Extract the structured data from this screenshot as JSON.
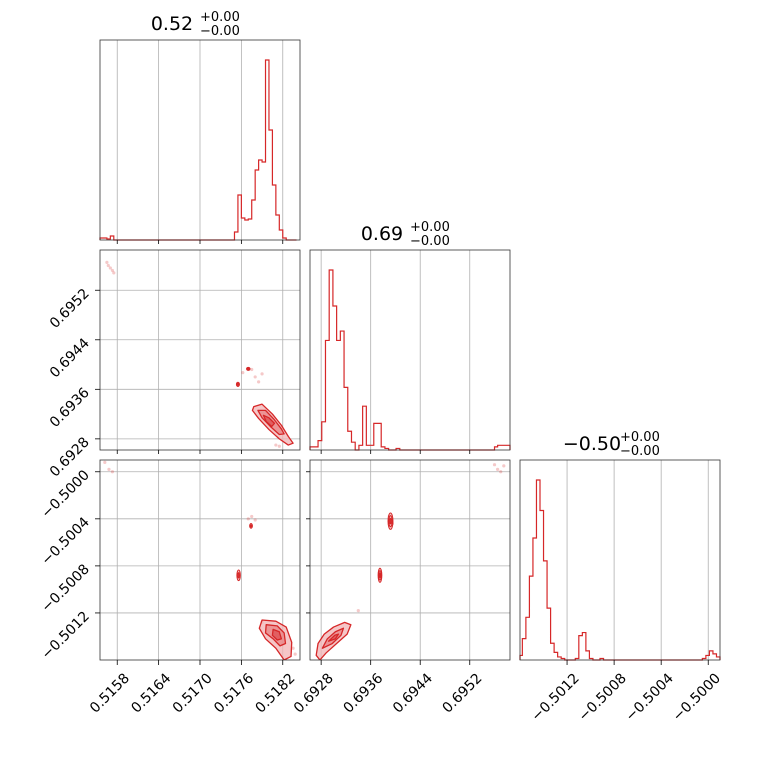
{
  "chart_data": {
    "type": "corner",
    "colors": {
      "main": "#d62728",
      "fill": "#f2b3b4",
      "grid": "#b0b0b0"
    },
    "parameters": [
      {
        "title": "0.52",
        "upper": "+0.00",
        "lower": "−0.00",
        "range": [
          0.51555,
          0.51845
        ],
        "ticks": [
          0.5158,
          0.5164,
          0.517,
          0.5176,
          0.5182
        ],
        "tick_labels": [
          "0.5158",
          "0.5164",
          "0.5170",
          "0.5176",
          "0.5182"
        ],
        "hist_bins": [
          0.51555,
          0.5156,
          0.51565,
          0.5157,
          0.51575,
          0.5175,
          0.51755,
          0.5176,
          0.51765,
          0.5177,
          0.51775,
          0.5178,
          0.51785,
          0.5179,
          0.51795,
          0.518,
          0.51805,
          0.5181,
          0.51815,
          0.5182,
          0.51825,
          0.5183,
          0.51835,
          0.5184
        ],
        "hist_counts": [
          2,
          2,
          1,
          4,
          0,
          8,
          45,
          22,
          20,
          21,
          40,
          70,
          80,
          78,
          180,
          110,
          55,
          25,
          10,
          2,
          0,
          0,
          0
        ]
      },
      {
        "title": "0.69",
        "upper": "+0.00",
        "lower": "−0.00",
        "range": [
          0.69262,
          0.69585
        ],
        "ticks": [
          0.6928,
          0.6936,
          0.6944,
          0.6952
        ],
        "tick_labels": [
          "0.6928",
          "0.6936",
          "0.6944",
          "0.6952"
        ],
        "hist_bins": [
          0.69262,
          0.69275,
          0.69281,
          0.69287,
          0.69293,
          0.69299,
          0.69305,
          0.69311,
          0.69317,
          0.69323,
          0.69329,
          0.69335,
          0.69341,
          0.69347,
          0.69353,
          0.69359,
          0.69365,
          0.69371,
          0.69377,
          0.69383,
          0.69389,
          0.69395,
          0.69401,
          0.69407,
          0.6956,
          0.69565,
          0.6957,
          0.69575,
          0.69585
        ],
        "hist_counts": [
          2,
          6,
          18,
          70,
          115,
          92,
          70,
          76,
          40,
          12,
          5,
          0,
          3,
          28,
          3,
          3,
          17,
          17,
          2,
          1,
          0,
          0,
          1,
          0,
          2,
          3,
          3,
          3
        ]
      },
      {
        "title": "−0.50",
        "upper": "+0.00",
        "lower": "−0.00",
        "range": [
          -0.5016,
          -0.4999
        ],
        "ticks": [
          -0.5012,
          -0.5008,
          -0.5004,
          -0.5
        ],
        "tick_labels": [
          "−0.5012",
          "−0.5008",
          "−0.5004",
          "−0.5000"
        ],
        "hist_bins": [
          -0.5016,
          -0.50158,
          -0.50155,
          -0.50152,
          -0.50149,
          -0.50146,
          -0.50143,
          -0.5014,
          -0.50137,
          -0.50134,
          -0.50131,
          -0.50128,
          -0.50125,
          -0.50122,
          -0.50119,
          -0.50116,
          -0.50113,
          -0.5011,
          -0.50107,
          -0.50104,
          -0.50101,
          -0.50098,
          -0.50095,
          -0.50092,
          -0.50089,
          -0.50005,
          -0.50002,
          -0.49999,
          -0.49996,
          -0.49993,
          -0.4999
        ],
        "hist_counts": [
          3,
          14,
          28,
          55,
          80,
          118,
          98,
          65,
          34,
          11,
          5,
          2,
          1,
          0,
          0,
          0,
          1,
          16,
          18,
          6,
          1,
          0,
          0,
          1,
          0,
          1,
          3,
          6,
          4,
          2
        ]
      }
    ],
    "pairs": [
      {
        "xpar": 0,
        "ypar": 1,
        "scatter": [
          [
            0.51565,
            0.69565
          ],
          [
            0.51567,
            0.6956
          ],
          [
            0.5157,
            0.69556
          ],
          [
            0.51573,
            0.69552
          ],
          [
            0.51575,
            0.69548
          ],
          [
            0.51762,
            0.69387
          ],
          [
            0.51775,
            0.69392
          ],
          [
            0.5178,
            0.6938
          ],
          [
            0.51785,
            0.69372
          ],
          [
            0.5179,
            0.69385
          ],
          [
            0.5181,
            0.6927
          ],
          [
            0.51815,
            0.69268
          ]
        ],
        "blobs": [
          {
            "cx": 0.51755,
            "cy": 0.69368,
            "rx": 2.2e-05,
            "ry": 3.5e-05,
            "density": 2
          },
          {
            "cx": 0.5177,
            "cy": 0.69393,
            "rx": 2.5e-05,
            "ry": 2.5e-05,
            "density": 3
          }
        ],
        "contours": [
          [
            [
              0.51778,
              0.69332
            ],
            [
              0.5179,
              0.69336
            ],
            [
              0.51805,
              0.6932
            ],
            [
              0.51818,
              0.69302
            ],
            [
              0.51828,
              0.69284
            ],
            [
              0.51835,
              0.69273
            ],
            [
              0.51828,
              0.6927
            ],
            [
              0.51815,
              0.6928
            ],
            [
              0.518,
              0.69295
            ],
            [
              0.51785,
              0.69313
            ],
            [
              0.51776,
              0.69326
            ]
          ],
          [
            [
              0.51784,
              0.69326
            ],
            [
              0.51795,
              0.69326
            ],
            [
              0.51807,
              0.69312
            ],
            [
              0.51818,
              0.69296
            ],
            [
              0.51822,
              0.69288
            ],
            [
              0.51815,
              0.69287
            ],
            [
              0.51802,
              0.693
            ],
            [
              0.5179,
              0.69314
            ]
          ],
          [
            [
              0.51792,
              0.69318
            ],
            [
              0.518,
              0.69314
            ],
            [
              0.51808,
              0.69305
            ],
            [
              0.51804,
              0.693
            ],
            [
              0.51796,
              0.69308
            ]
          ]
        ]
      },
      {
        "xpar": 0,
        "ypar": 2,
        "scatter": [
          [
            0.51562,
            -0.49992
          ],
          [
            0.51568,
            -0.49998
          ],
          [
            0.51573,
            -0.5
          ],
          [
            0.5177,
            -0.5004
          ],
          [
            0.51775,
            -0.50038
          ],
          [
            0.5178,
            -0.50041
          ],
          [
            0.5179,
            -0.50128
          ],
          [
            0.51835,
            -0.5015
          ],
          [
            0.51838,
            -0.50155
          ]
        ],
        "blobs": [
          {
            "cx": 0.51756,
            "cy": -0.50088,
            "rx": 2.5e-05,
            "ry": 4.5e-05,
            "density": 2
          },
          {
            "cx": 0.51774,
            "cy": -0.50046,
            "rx": 2e-05,
            "ry": 2e-05,
            "density": 2
          }
        ],
        "contours": [
          [
            [
              0.5179,
              -0.50126
            ],
            [
              0.5181,
              -0.50127
            ],
            [
              0.51825,
              -0.50132
            ],
            [
              0.51833,
              -0.50145
            ],
            [
              0.51832,
              -0.50157
            ],
            [
              0.51822,
              -0.5016
            ],
            [
              0.5181,
              -0.5015
            ],
            [
              0.51795,
              -0.50142
            ],
            [
              0.51786,
              -0.50133
            ]
          ],
          [
            [
              0.51796,
              -0.5013
            ],
            [
              0.51812,
              -0.50131
            ],
            [
              0.51822,
              -0.50137
            ],
            [
              0.51824,
              -0.50146
            ],
            [
              0.51816,
              -0.50148
            ],
            [
              0.51806,
              -0.50142
            ],
            [
              0.51795,
              -0.50137
            ]
          ],
          [
            [
              0.51806,
              -0.50134
            ],
            [
              0.51815,
              -0.50136
            ],
            [
              0.51818,
              -0.50142
            ],
            [
              0.51812,
              -0.50143
            ],
            [
              0.51805,
              -0.50139
            ]
          ]
        ]
      },
      {
        "xpar": 1,
        "ypar": 2,
        "scatter": [
          [
            0.6956,
            -0.49994
          ],
          [
            0.69565,
            -0.49998
          ],
          [
            0.6957,
            -0.5
          ],
          [
            0.69575,
            -0.49995
          ],
          [
            0.6939,
            -0.50038
          ],
          [
            0.69395,
            -0.50044
          ],
          [
            0.6934,
            -0.50118
          ]
        ],
        "blobs": [
          {
            "cx": 0.69392,
            "cy": -0.50042,
            "rx": 4e-05,
            "ry": 7e-05,
            "density": 3
          },
          {
            "cx": 0.69375,
            "cy": -0.50088,
            "rx": 3e-05,
            "ry": 6e-05,
            "density": 3
          }
        ],
        "contours": [
          [
            [
              0.69272,
              -0.50156
            ],
            [
              0.69275,
              -0.50146
            ],
            [
              0.69285,
              -0.50138
            ],
            [
              0.693,
              -0.50132
            ],
            [
              0.69318,
              -0.50128
            ],
            [
              0.69328,
              -0.5013
            ],
            [
              0.69322,
              -0.50138
            ],
            [
              0.69305,
              -0.50146
            ],
            [
              0.69288,
              -0.50154
            ],
            [
              0.69278,
              -0.5016
            ]
          ],
          [
            [
              0.69282,
              -0.5015
            ],
            [
              0.6929,
              -0.50142
            ],
            [
              0.69303,
              -0.50136
            ],
            [
              0.69316,
              -0.50133
            ],
            [
              0.69312,
              -0.50139
            ],
            [
              0.69298,
              -0.50146
            ]
          ],
          [
            [
              0.69292,
              -0.50144
            ],
            [
              0.69302,
              -0.50139
            ],
            [
              0.69308,
              -0.50138
            ],
            [
              0.69303,
              -0.50142
            ]
          ]
        ]
      }
    ]
  }
}
